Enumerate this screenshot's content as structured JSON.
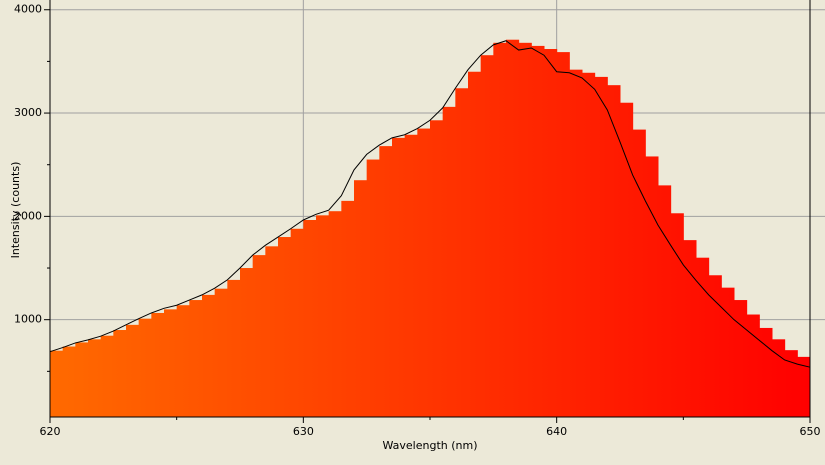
{
  "chart_data": {
    "type": "histogram",
    "xlabel": "Wavelength (nm)",
    "ylabel": "Intensity (counts)",
    "bins": [
      620,
      620.5,
      621,
      621.5,
      622,
      622.5,
      623,
      623.5,
      624,
      624.5,
      625,
      625.5,
      626,
      626.5,
      627,
      627.5,
      628,
      628.5,
      629,
      629.5,
      630,
      630.5,
      631,
      631.5,
      632,
      632.5,
      633,
      633.5,
      634,
      634.5,
      635,
      635.5,
      636,
      636.5,
      637,
      637.5,
      638,
      638.5,
      639,
      639.5,
      640,
      640.5,
      641,
      641.5,
      642,
      642.5,
      643,
      643.5,
      644,
      644.5,
      645,
      645.5,
      646,
      646.5,
      647,
      647.5,
      648,
      648.5,
      649,
      649.5,
      650
    ],
    "values": [
      700,
      740,
      780,
      810,
      845,
      900,
      950,
      1010,
      1065,
      1100,
      1140,
      1190,
      1240,
      1300,
      1385,
      1500,
      1625,
      1710,
      1800,
      1880,
      1965,
      2010,
      2050,
      2150,
      2350,
      2550,
      2680,
      2760,
      2790,
      2850,
      2930,
      3060,
      3240,
      3400,
      3560,
      3680,
      3710,
      3680,
      3650,
      3620,
      3590,
      3420,
      3390,
      3350,
      3270,
      3100,
      2840,
      2580,
      2300,
      2030,
      1770,
      1600,
      1430,
      1310,
      1190,
      1050,
      920,
      810,
      705,
      640
    ],
    "gradient": [
      "#ff6a00",
      "#ff0000"
    ],
    "line": {
      "color": "#000000",
      "x": [
        620,
        620.5,
        621,
        621.5,
        622,
        622.5,
        623,
        623.5,
        624,
        624.5,
        625,
        625.5,
        626,
        626.5,
        627,
        627.5,
        628,
        628.5,
        629,
        629.5,
        630,
        630.5,
        631,
        631.5,
        632,
        632.5,
        633,
        633.5,
        634,
        634.5,
        635,
        635.5,
        636,
        636.5,
        637,
        637.5,
        638,
        638.5,
        639,
        639.5,
        640,
        640.5,
        641,
        641.5,
        642,
        642.5,
        643,
        643.5,
        644,
        644.5,
        645,
        645.5,
        646,
        646.5,
        647,
        647.5,
        648,
        648.5,
        649,
        649.5,
        650
      ],
      "values": [
        690,
        730,
        775,
        805,
        840,
        890,
        950,
        1010,
        1065,
        1110,
        1140,
        1190,
        1240,
        1305,
        1385,
        1500,
        1625,
        1720,
        1800,
        1880,
        1965,
        2020,
        2060,
        2200,
        2450,
        2600,
        2690,
        2760,
        2790,
        2850,
        2930,
        3050,
        3240,
        3420,
        3560,
        3660,
        3700,
        3610,
        3630,
        3560,
        3400,
        3390,
        3340,
        3230,
        3030,
        2720,
        2400,
        2150,
        1915,
        1720,
        1530,
        1380,
        1240,
        1120,
        1000,
        900,
        800,
        700,
        610,
        570,
        540
      ]
    },
    "xlim": [
      620,
      650
    ],
    "ylim": [
      58,
      4075
    ],
    "xticks": [
      620,
      630,
      640,
      650
    ],
    "yticks": [
      1000,
      2000,
      3000,
      4000
    ],
    "xminor": [
      625,
      635,
      645
    ],
    "yminor": [
      500,
      1500,
      2500,
      3500
    ],
    "grid": true
  }
}
